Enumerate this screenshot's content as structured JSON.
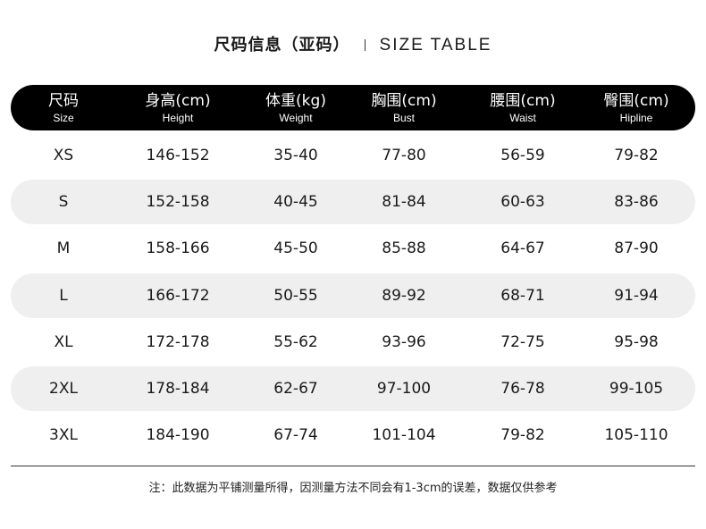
{
  "title": {
    "cn": "尺码信息（亚码）",
    "en": "SIZE TABLE"
  },
  "columns": [
    {
      "cn": "尺码",
      "en": "Size"
    },
    {
      "cn": "身高(cm)",
      "en": "Height"
    },
    {
      "cn": "体重(kg)",
      "en": "Weight"
    },
    {
      "cn": "胸围(cm)",
      "en": "Bust"
    },
    {
      "cn": "腰围(cm)",
      "en": "Waist"
    },
    {
      "cn": "臀围(cm)",
      "en": "Hipline"
    }
  ],
  "rows": [
    [
      "XS",
      "146-152",
      "35-40",
      "77-80",
      "56-59",
      "79-82"
    ],
    [
      "S",
      "152-158",
      "40-45",
      "81-84",
      "60-63",
      "83-86"
    ],
    [
      "M",
      "158-166",
      "45-50",
      "85-88",
      "64-67",
      "87-90"
    ],
    [
      "L",
      "166-172",
      "50-55",
      "89-92",
      "68-71",
      "91-94"
    ],
    [
      "XL",
      "172-178",
      "55-62",
      "93-96",
      "72-75",
      "95-98"
    ],
    [
      "2XL",
      "178-184",
      "62-67",
      "97-100",
      "76-78",
      "99-105"
    ],
    [
      "3XL",
      "184-190",
      "67-74",
      "101-104",
      "79-82",
      "105-110"
    ]
  ],
  "note": "注：此数据为平铺测量所得，因测量方法不同会有1-3cm的误差，数据仅供参考",
  "colors": {
    "header_bg": "#000000",
    "shade_row": "#efefef"
  }
}
